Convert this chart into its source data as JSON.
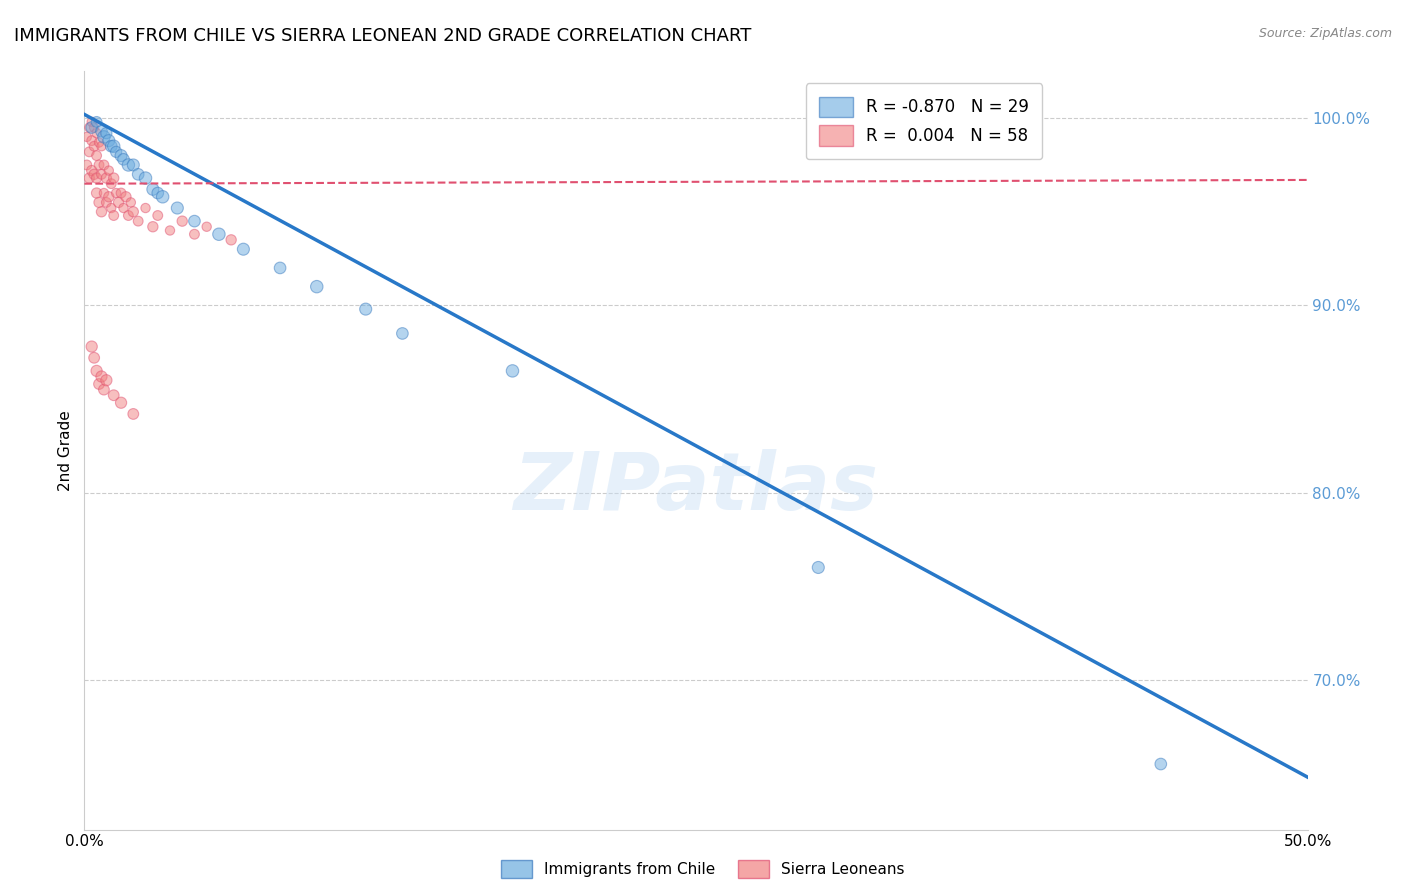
{
  "title": "IMMIGRANTS FROM CHILE VS SIERRA LEONEAN 2ND GRADE CORRELATION CHART",
  "source": "Source: ZipAtlas.com",
  "ylabel": "2nd Grade",
  "legend_label_blue": "Immigrants from Chile",
  "legend_label_pink": "Sierra Leoneans",
  "R_blue": -0.87,
  "N_blue": 29,
  "R_pink": 0.004,
  "N_pink": 58,
  "xlim": [
    0.0,
    0.5
  ],
  "ylim": [
    0.62,
    1.025
  ],
  "xtick_positions": [
    0.0,
    0.05,
    0.1,
    0.15,
    0.2,
    0.25,
    0.3,
    0.35,
    0.4,
    0.45,
    0.5
  ],
  "xticklabels": [
    "0.0%",
    "",
    "",
    "",
    "",
    "",
    "",
    "",
    "",
    "",
    "50.0%"
  ],
  "yticks_right": [
    0.7,
    0.8,
    0.9,
    1.0
  ],
  "ytick_labels_right": [
    "70.0%",
    "80.0%",
    "90.0%",
    "100.0%"
  ],
  "color_blue": "#6aabde",
  "color_pink": "#f08080",
  "color_trendline_blue": "#2878c8",
  "color_trendline_pink": "#e05070",
  "watermark": "ZIPatlas",
  "blue_scatter_x": [
    0.003,
    0.005,
    0.007,
    0.008,
    0.009,
    0.01,
    0.011,
    0.012,
    0.013,
    0.015,
    0.016,
    0.018,
    0.02,
    0.022,
    0.025,
    0.028,
    0.03,
    0.032,
    0.038,
    0.045,
    0.055,
    0.065,
    0.08,
    0.095,
    0.115,
    0.13,
    0.175,
    0.3,
    0.44
  ],
  "blue_scatter_y": [
    0.995,
    0.998,
    0.993,
    0.99,
    0.992,
    0.988,
    0.985,
    0.985,
    0.982,
    0.98,
    0.978,
    0.975,
    0.975,
    0.97,
    0.968,
    0.962,
    0.96,
    0.958,
    0.952,
    0.945,
    0.938,
    0.93,
    0.92,
    0.91,
    0.898,
    0.885,
    0.865,
    0.76,
    0.655
  ],
  "blue_scatter_size": [
    70,
    60,
    70,
    80,
    65,
    75,
    70,
    80,
    65,
    75,
    70,
    80,
    75,
    70,
    80,
    75,
    70,
    80,
    75,
    70,
    80,
    75,
    70,
    80,
    75,
    70,
    80,
    75,
    70
  ],
  "pink_scatter_x": [
    0.001,
    0.001,
    0.002,
    0.002,
    0.002,
    0.003,
    0.003,
    0.003,
    0.004,
    0.004,
    0.004,
    0.005,
    0.005,
    0.005,
    0.005,
    0.006,
    0.006,
    0.006,
    0.007,
    0.007,
    0.007,
    0.008,
    0.008,
    0.009,
    0.009,
    0.01,
    0.01,
    0.011,
    0.011,
    0.012,
    0.012,
    0.013,
    0.014,
    0.015,
    0.016,
    0.017,
    0.018,
    0.019,
    0.02,
    0.022,
    0.025,
    0.028,
    0.03,
    0.035,
    0.04,
    0.045,
    0.05,
    0.06,
    0.003,
    0.004,
    0.005,
    0.006,
    0.007,
    0.008,
    0.009,
    0.012,
    0.015,
    0.02
  ],
  "pink_scatter_y": [
    0.975,
    0.99,
    0.968,
    0.982,
    0.995,
    0.972,
    0.988,
    0.998,
    0.97,
    0.985,
    0.995,
    0.968,
    0.98,
    0.992,
    0.96,
    0.975,
    0.987,
    0.955,
    0.97,
    0.985,
    0.95,
    0.975,
    0.96,
    0.968,
    0.955,
    0.972,
    0.958,
    0.965,
    0.952,
    0.968,
    0.948,
    0.96,
    0.955,
    0.96,
    0.952,
    0.958,
    0.948,
    0.955,
    0.95,
    0.945,
    0.952,
    0.942,
    0.948,
    0.94,
    0.945,
    0.938,
    0.942,
    0.935,
    0.878,
    0.872,
    0.865,
    0.858,
    0.862,
    0.855,
    0.86,
    0.852,
    0.848,
    0.842
  ],
  "pink_scatter_size": [
    50,
    45,
    55,
    50,
    45,
    55,
    50,
    45,
    55,
    50,
    45,
    55,
    50,
    45,
    55,
    50,
    45,
    55,
    50,
    45,
    55,
    50,
    45,
    55,
    50,
    45,
    55,
    50,
    45,
    55,
    50,
    45,
    55,
    50,
    45,
    55,
    50,
    45,
    55,
    50,
    45,
    55,
    50,
    45,
    55,
    50,
    45,
    55,
    65,
    60,
    65,
    60,
    65,
    60,
    65,
    60,
    65,
    60
  ],
  "blue_trendline_x": [
    0.0,
    0.5
  ],
  "blue_trendline_y": [
    1.002,
    0.648
  ],
  "pink_trendline_x": [
    0.0,
    0.5
  ],
  "pink_trendline_y": [
    0.965,
    0.967
  ]
}
